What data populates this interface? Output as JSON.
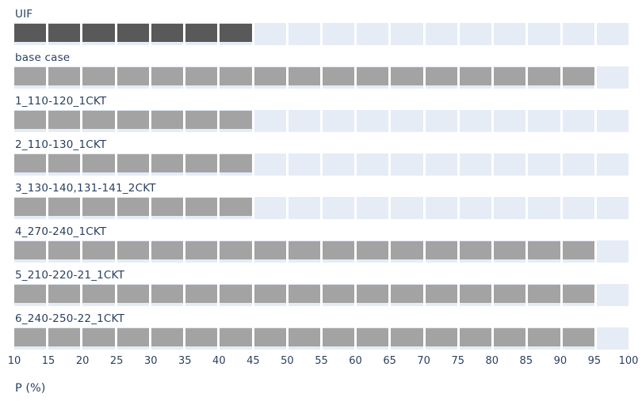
{
  "chart_data": {
    "type": "bar",
    "orientation": "horizontal",
    "title": "",
    "xlabel": "P (%)",
    "ylabel": "",
    "xlim": [
      10,
      100
    ],
    "x_ticks": [
      10,
      15,
      20,
      25,
      30,
      35,
      40,
      45,
      50,
      55,
      60,
      65,
      70,
      75,
      80,
      85,
      90,
      95,
      100
    ],
    "bar_start": 10,
    "cell_step": 5,
    "grid": true,
    "legend_position": "none",
    "categories": [
      "UIF",
      "base case",
      "1_110-120_1CKT",
      "2_110-130_1CKT",
      "3_130-140,131-141_2CKT",
      "4_270-240_1CKT",
      "5_210-220-21_1CKT",
      "6_240-250-22_1CKT"
    ],
    "values": [
      45,
      95,
      45,
      45,
      45,
      95,
      95,
      95
    ],
    "bar_colors": [
      "#595959",
      "#a3a3a3",
      "#a3a3a3",
      "#a3a3a3",
      "#a3a3a3",
      "#a3a3a3",
      "#a3a3a3",
      "#a3a3a3"
    ]
  },
  "styles": {
    "plot_background": "#e5ecf6",
    "gridline_color": "#ffffff",
    "text_color": "#2a3f5f",
    "page_background": "#ffffff"
  }
}
